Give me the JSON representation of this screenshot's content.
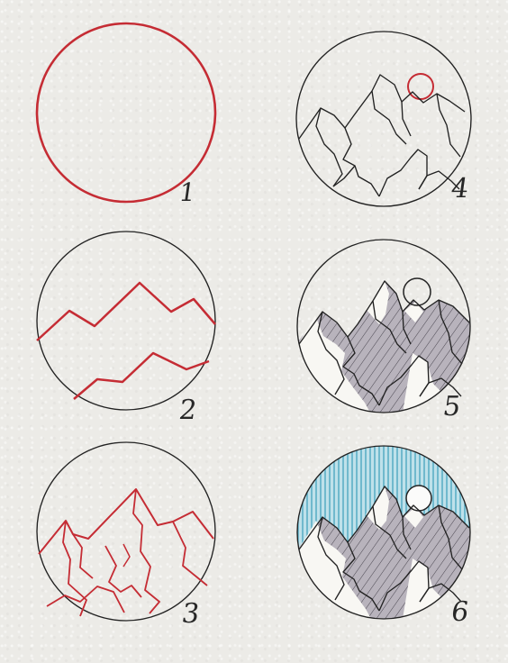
{
  "steps": [
    {
      "number": "1"
    },
    {
      "number": "2"
    },
    {
      "number": "3"
    },
    {
      "number": "4"
    },
    {
      "number": "5"
    },
    {
      "number": "6"
    }
  ],
  "colors": {
    "paper": "#ecebe7",
    "pencil": "#222222",
    "red_guide": "#c52c34",
    "shade": "#8b8792",
    "sky_blue": "#4ea6bd"
  }
}
